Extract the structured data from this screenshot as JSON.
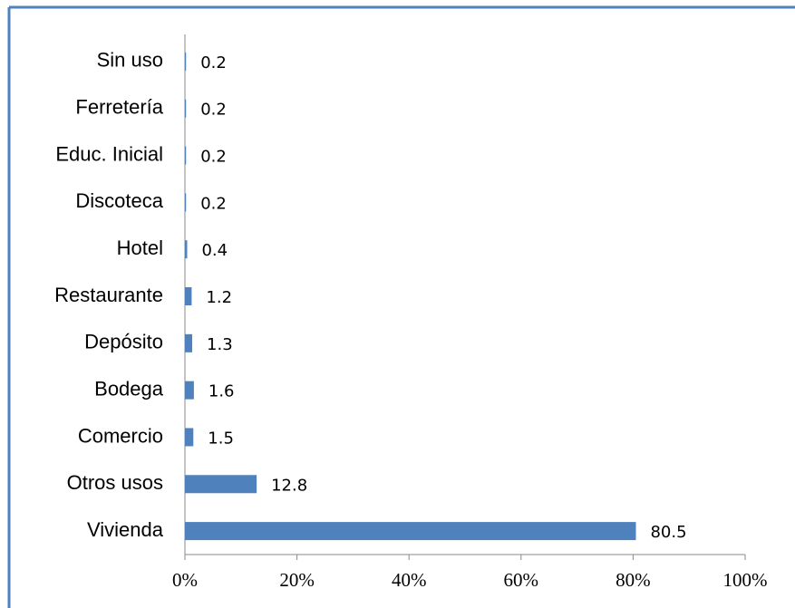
{
  "chart_data": {
    "type": "bar",
    "orientation": "horizontal",
    "categories": [
      "Sin uso",
      "Ferretería",
      "Educ. Inicial",
      "Discoteca",
      "Hotel",
      "Restaurante",
      "Depósito",
      "Bodega",
      "Comercio",
      "Otros usos",
      "Vivienda"
    ],
    "values": [
      0.2,
      0.2,
      0.2,
      0.2,
      0.4,
      1.2,
      1.3,
      1.6,
      1.5,
      12.8,
      80.5
    ],
    "color": "#4f81bd",
    "xlim": [
      0,
      100
    ],
    "xticks": [
      {
        "value": 0,
        "label": "0%"
      },
      {
        "value": 20,
        "label": "20%"
      },
      {
        "value": 40,
        "label": "40%"
      },
      {
        "value": 60,
        "label": "60%"
      },
      {
        "value": 80,
        "label": "80%"
      },
      {
        "value": 100,
        "label": "100%"
      }
    ]
  }
}
